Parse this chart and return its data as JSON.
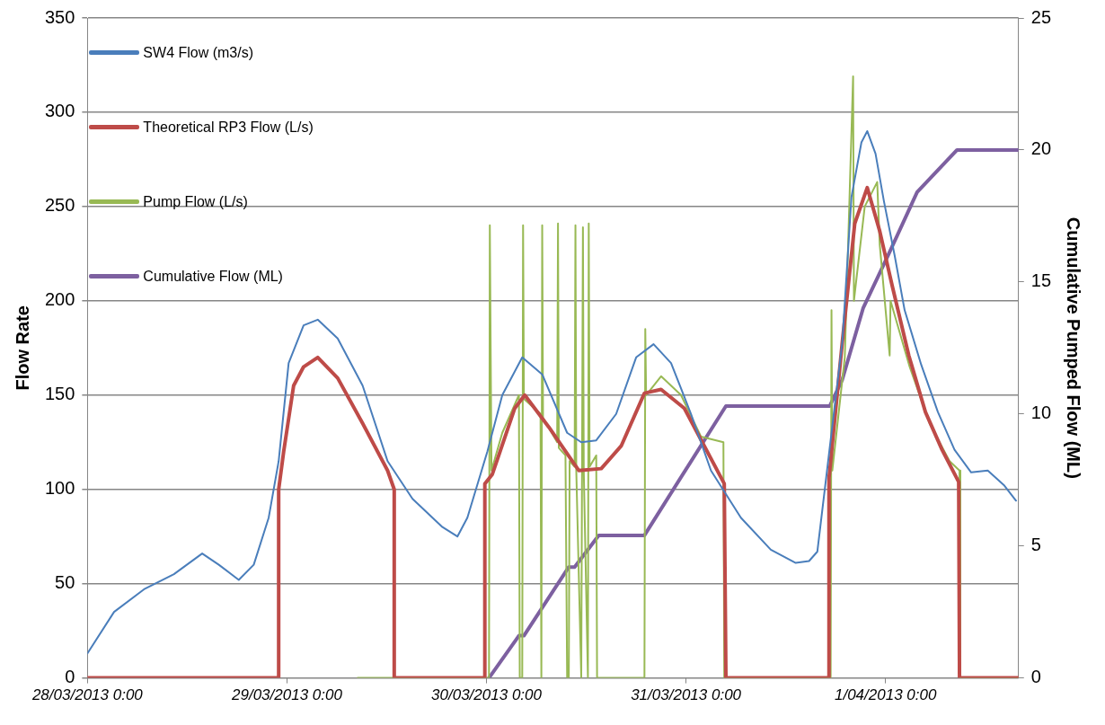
{
  "chart_data": {
    "type": "line",
    "xlabel": null,
    "ylabel": "Flow Rate",
    "y2label": "Cumulative Pumped Flow (ML)",
    "xlim": [
      "2013-03-28T00:00",
      "2013-04-01T16:00"
    ],
    "xticks": [
      {
        "value": "2013-03-28T00:00",
        "label": "28/03/2013 0:00"
      },
      {
        "value": "2013-03-29T00:00",
        "label": "29/03/2013 0:00"
      },
      {
        "value": "2013-03-30T00:00",
        "label": "30/03/2013 0:00"
      },
      {
        "value": "2013-03-31T00:00",
        "label": "31/03/2013 0:00"
      },
      {
        "value": "2013-04-01T00:00",
        "label": "1/04/2013 0:00"
      }
    ],
    "ylim": [
      0,
      350
    ],
    "yticks": [
      0,
      50,
      100,
      150,
      200,
      250,
      300,
      350
    ],
    "y2lim": [
      0,
      25
    ],
    "y2ticks": [
      0,
      5,
      10,
      15,
      20,
      25
    ],
    "grid": "y",
    "legend": "top left",
    "marker": "none",
    "series": [
      {
        "name": "SW4 Flow (m3/s)",
        "color": "#4a7ebb",
        "x": [
          "2013-03-28T00:00",
          "2013-03-28T03:12",
          "2013-03-28T06:48",
          "2013-03-28T10:24",
          "2013-03-28T13:48",
          "2013-03-28T15:48",
          "2013-03-28T18:12",
          "2013-03-28T20:00",
          "2013-03-28T21:48",
          "2013-03-28T23:00",
          "2013-03-29T00:12",
          "2013-03-29T02:00",
          "2013-03-29T03:42",
          "2013-03-29T06:06",
          "2013-03-29T09:06",
          "2013-03-29T12:06",
          "2013-03-29T15:06",
          "2013-03-29T18:42",
          "2013-03-29T20:30",
          "2013-03-29T21:42",
          "2013-03-30T00:06",
          "2013-03-30T01:54",
          "2013-03-30T04:18",
          "2013-03-30T06:42",
          "2013-03-30T09:42",
          "2013-03-30T11:24",
          "2013-03-30T13:12",
          "2013-03-30T15:36",
          "2013-03-30T18:00",
          "2013-03-30T20:06",
          "2013-03-30T22:12",
          "2013-03-31T00:36",
          "2013-03-31T03:00",
          "2013-03-31T06:36",
          "2013-03-31T10:12",
          "2013-03-31T13:12",
          "2013-03-31T14:48",
          "2013-03-31T15:48",
          "2013-03-31T16:48",
          "2013-03-31T18:48",
          "2013-03-31T19:54",
          "2013-03-31T21:06",
          "2013-03-31T21:48",
          "2013-03-31T22:48",
          "2013-03-31T23:48",
          "2013-04-01T01:06",
          "2013-04-01T02:18",
          "2013-04-01T04:18",
          "2013-04-01T06:18",
          "2013-04-01T08:18",
          "2013-04-01T10:18",
          "2013-04-01T12:18",
          "2013-04-01T14:18",
          "2013-04-01T15:42"
        ],
        "values": [
          13,
          35,
          47,
          55,
          66,
          60,
          52,
          60,
          85,
          115,
          167,
          187,
          190,
          180,
          155,
          115,
          95,
          80,
          75,
          85,
          120,
          150,
          170,
          161,
          130,
          125,
          126,
          140,
          170,
          177,
          167,
          140,
          110,
          85,
          68,
          61,
          62,
          67,
          104,
          178,
          255,
          284,
          290,
          278,
          253,
          224,
          195,
          166,
          141,
          121,
          109,
          110,
          102,
          94
        ]
      },
      {
        "name": "Theoretical RP3 Flow (L/s)",
        "color": "#be4b48",
        "x": [
          "2013-03-28T00:00",
          "2013-03-28T23:00",
          "2013-03-28T23:00",
          "2013-03-28T23:36",
          "2013-03-29T00:48",
          "2013-03-29T02:00",
          "2013-03-29T03:42",
          "2013-03-29T06:06",
          "2013-03-29T09:06",
          "2013-03-29T12:06",
          "2013-03-29T12:54",
          "2013-03-29T12:54",
          "2013-03-29T23:48",
          "2013-03-29T23:48",
          "2013-03-30T00:42",
          "2013-03-30T03:24",
          "2013-03-30T04:36",
          "2013-03-30T07:30",
          "2013-03-30T11:06",
          "2013-03-30T13:48",
          "2013-03-30T16:12",
          "2013-03-30T19:00",
          "2013-03-30T21:00",
          "2013-03-30T23:48",
          "2013-03-31T02:12",
          "2013-03-31T04:36",
          "2013-03-31T04:48",
          "2013-03-31T17:12",
          "2013-03-31T17:12",
          "2013-03-31T18:48",
          "2013-03-31T20:18",
          "2013-03-31T21:48",
          "2013-03-31T23:18",
          "2013-04-01T00:48",
          "2013-04-01T02:48",
          "2013-04-01T04:48",
          "2013-04-01T06:48",
          "2013-04-01T08:48",
          "2013-04-01T08:54",
          "2013-04-01T16:00"
        ],
        "values": [
          0,
          0,
          100,
          120,
          155,
          165,
          170,
          159,
          135,
          110,
          100,
          0,
          0,
          103,
          108,
          143,
          150,
          133,
          110,
          111,
          123,
          151,
          153,
          143,
          123,
          103,
          0,
          0,
          106,
          178,
          241,
          260,
          237,
          208,
          171,
          141,
          121,
          104,
          0,
          0
        ]
      },
      {
        "name": "Pump Flow (L/s)",
        "color": "#98b954",
        "x": [
          "2013-03-29T08:30",
          "2013-03-30T00:18",
          "2013-03-30T00:24",
          "2013-03-30T00:36",
          "2013-03-30T01:54",
          "2013-03-30T03:54",
          "2013-03-30T04:00",
          "2013-03-30T04:18",
          "2013-03-30T04:24",
          "2013-03-30T04:30",
          "2013-03-30T06:30",
          "2013-03-30T06:36",
          "2013-03-30T06:42",
          "2013-03-30T06:48",
          "2013-03-30T08:30",
          "2013-03-30T08:36",
          "2013-03-30T08:42",
          "2013-03-30T09:30",
          "2013-03-30T09:42",
          "2013-03-30T09:54",
          "2013-03-30T10:00",
          "2013-03-30T10:36",
          "2013-03-30T10:42",
          "2013-03-30T10:48",
          "2013-03-30T11:24",
          "2013-03-30T11:36",
          "2013-03-30T11:42",
          "2013-03-30T12:12",
          "2013-03-30T12:18",
          "2013-03-30T12:24",
          "2013-03-30T13:12",
          "2013-03-30T13:18",
          "2013-03-30T19:00",
          "2013-03-30T19:06",
          "2013-03-30T19:12",
          "2013-03-30T21:00",
          "2013-03-30T23:24",
          "2013-03-31T01:48",
          "2013-03-31T04:30",
          "2013-03-31T04:36",
          "2013-03-31T17:24",
          "2013-03-31T17:30",
          "2013-03-31T17:36",
          "2013-03-31T19:06",
          "2013-03-31T20:06",
          "2013-03-31T20:12",
          "2013-03-31T21:30",
          "2013-03-31T23:00",
          "2013-03-31T23:18",
          "2013-04-01T00:30",
          "2013-04-01T00:36",
          "2013-04-01T02:54",
          "2013-04-01T05:18",
          "2013-04-01T07:42",
          "2013-04-01T08:54",
          "2013-04-01T09:00",
          "2013-04-01T16:00"
        ],
        "values": [
          0,
          0,
          240,
          110,
          130,
          150,
          0,
          0,
          240,
          148,
          140,
          0,
          240,
          138,
          125,
          241,
          122,
          118,
          0,
          0,
          115,
          112,
          240,
          110,
          0,
          239,
          110,
          0,
          241,
          112,
          118,
          0,
          0,
          185,
          150,
          160,
          150,
          128,
          125,
          0,
          0,
          195,
          110,
          170,
          319,
          200,
          250,
          263,
          230,
          171,
          200,
          165,
          135,
          115,
          110,
          0,
          0
        ]
      },
      {
        "name": "Cumulative Flow (ML)",
        "color": "#7d60a0",
        "axis": "y2",
        "x": [
          "2013-03-30T00:18",
          "2013-03-30T03:54",
          "2013-03-30T04:30",
          "2013-03-30T09:54",
          "2013-03-30T10:36",
          "2013-03-30T13:30",
          "2013-03-30T19:00",
          "2013-03-31T04:48",
          "2013-03-31T17:18",
          "2013-03-31T18:48",
          "2013-03-31T21:18",
          "2013-04-01T00:18",
          "2013-04-01T03:48",
          "2013-04-01T08:36",
          "2013-04-01T16:00"
        ],
        "values": [
          0,
          1.6,
          1.6,
          4.2,
          4.2,
          5.4,
          5.4,
          10.3,
          10.3,
          11.3,
          14.0,
          16.0,
          18.4,
          20,
          20
        ]
      }
    ]
  }
}
